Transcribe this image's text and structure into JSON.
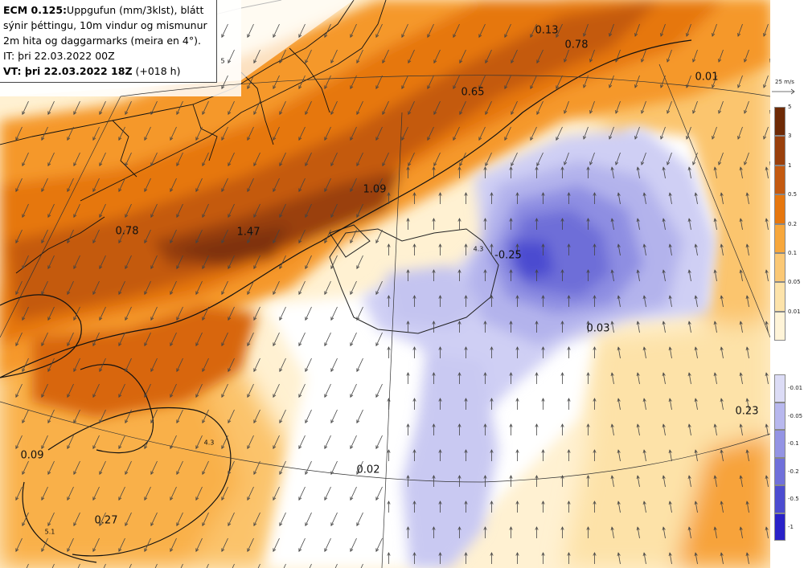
{
  "title": {
    "model": "ECM 0.125:",
    "line1_rest": "Uppgufun (mm/3klst), blátt",
    "line2": "sýnir þéttingu, 10m vindur og mismunur",
    "line3": "2m hita og daggarmarks (meira en 4°).",
    "init_time": "IT: þri 22.03.2022 00Z",
    "valid_prefix": "VT: þri 22.03.2022 18Z",
    "valid_suffix": "(+018 h)"
  },
  "map_labels": [
    {
      "text": "0.13"
    },
    {
      "text": "0.78"
    },
    {
      "text": "0.01"
    },
    {
      "text": "0.65"
    },
    {
      "text": "1.09"
    },
    {
      "text": "0.78"
    },
    {
      "text": "1.47"
    },
    {
      "text": "-0.25"
    },
    {
      "text": "0.03"
    },
    {
      "text": "0.23"
    },
    {
      "text": "0.09"
    },
    {
      "text": "0.02"
    },
    {
      "text": "0.27"
    }
  ],
  "small_labels": [
    {
      "text": "4.3"
    },
    {
      "text": "4.3"
    },
    {
      "text": "5.1"
    },
    {
      "text": "5"
    }
  ],
  "wind_reference": "25 m/s",
  "legend_evaporation": {
    "ticks": [
      "5",
      "3",
      "1",
      "0.5",
      "0.2",
      "0.1",
      "0.05",
      "0.01"
    ],
    "colors": [
      "#6e2a06",
      "#9a400c",
      "#c45a10",
      "#e6770e",
      "#f7a73c",
      "#fbc875",
      "#fde3aa",
      "#fff4d8"
    ]
  },
  "legend_condensation": {
    "ticks": [
      "-0.01",
      "-0.05",
      "-0.1",
      "-0.2",
      "-0.5",
      "-1"
    ],
    "colors": [
      "#dcdcf6",
      "#b8b8ee",
      "#9494e4",
      "#7070da",
      "#4c4cd0",
      "#2a22c8"
    ]
  }
}
